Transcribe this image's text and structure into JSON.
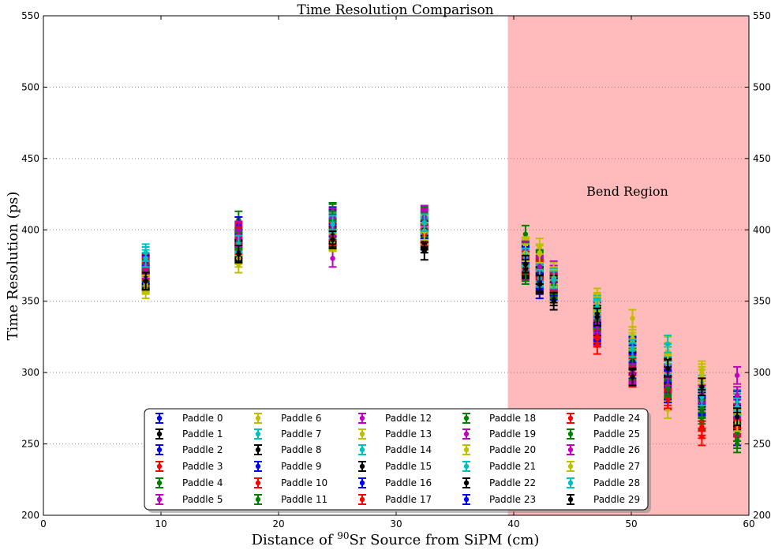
{
  "chart_data": {
    "type": "scatter",
    "title": "Time Resolution Comparison",
    "xlabel_prefix": "Distance of ",
    "xlabel_sup": "90",
    "xlabel_suffix": "Sr Source from SiPM (cm)",
    "ylabel": "Time Resolution (ps)",
    "xlim": [
      0,
      60
    ],
    "ylim": [
      200,
      550
    ],
    "xticks": [
      0,
      10,
      20,
      30,
      40,
      50,
      60
    ],
    "yticks": [
      200,
      250,
      300,
      350,
      400,
      450,
      500,
      550
    ],
    "grid": "horizontal dotted",
    "legend_position": "bottom-center",
    "shaded_region": {
      "label": "Bend Region",
      "x_start": 39.5,
      "x_end": 60,
      "color": "#ffbbbb"
    },
    "x": [
      8.7,
      16.6,
      24.6,
      32.4,
      41.0,
      42.2,
      43.4,
      47.1,
      50.1,
      53.1,
      56.0,
      59.0
    ],
    "series": [
      {
        "name": "Paddle 0",
        "color": "#0000ff",
        "marker": "circle",
        "values": [
          372,
          392,
          401,
          398,
          380,
          365,
          360,
          335,
          305,
          285,
          272,
          258
        ]
      },
      {
        "name": "Paddle 1",
        "color": "#000000",
        "marker": "circle",
        "values": [
          365,
          385,
          398,
          394,
          375,
          368,
          355,
          332,
          310,
          300,
          278,
          265
        ]
      },
      {
        "name": "Paddle 2",
        "color": "#0000ff",
        "marker": "circle",
        "values": [
          370,
          395,
          402,
          400,
          385,
          372,
          362,
          338,
          312,
          296,
          280,
          270
        ]
      },
      {
        "name": "Paddle 3",
        "color": "#ff0000",
        "marker": "circle",
        "values": [
          376,
          388,
          396,
          396,
          378,
          370,
          366,
          325,
          318,
          280,
          265,
          263
        ]
      },
      {
        "name": "Paddle 4",
        "color": "#008000",
        "marker": "circle",
        "values": [
          374,
          390,
          404,
          402,
          368,
          378,
          358,
          340,
          306,
          290,
          270,
          255
        ]
      },
      {
        "name": "Paddle 5",
        "color": "#bf00bf",
        "marker": "circle",
        "values": [
          368,
          398,
          380,
          408,
          382,
          362,
          372,
          330,
          298,
          292,
          285,
          275
        ]
      },
      {
        "name": "Paddle 6",
        "color": "#bfbf00",
        "marker": "circle",
        "values": [
          358,
          376,
          392,
          396,
          387,
          388,
          356,
          350,
          338,
          274,
          302,
          262
        ]
      },
      {
        "name": "Paddle 7",
        "color": "#00bfbf",
        "marker": "circle",
        "values": [
          378,
          393,
          400,
          402,
          386,
          367,
          363,
          345,
          320,
          312,
          278,
          282
        ]
      },
      {
        "name": "Paddle 8",
        "color": "#000000",
        "marker": "circle",
        "values": [
          366,
          386,
          394,
          390,
          374,
          361,
          353,
          336,
          316,
          298,
          288,
          268
        ]
      },
      {
        "name": "Paddle 9",
        "color": "#0000ff",
        "marker": "circle",
        "values": [
          369,
          396,
          408,
          399,
          381,
          358,
          361,
          326,
          302,
          285,
          283,
          255
        ]
      },
      {
        "name": "Paddle 10",
        "color": "#ff0000",
        "marker": "circle",
        "values": [
          371,
          399,
          405,
          395,
          379,
          373,
          367,
          327,
          296,
          294,
          262,
          272
        ]
      },
      {
        "name": "Paddle 11",
        "color": "#008000",
        "marker": "circle",
        "values": [
          373,
          407,
          413,
          401,
          397,
          380,
          359,
          339,
          309,
          288,
          274,
          250
        ]
      },
      {
        "name": "Paddle 12",
        "color": "#bf00bf",
        "marker": "circle",
        "values": [
          367,
          397,
          407,
          411,
          371,
          375,
          369,
          343,
          318,
          302,
          286,
          298
        ]
      },
      {
        "name": "Paddle 13",
        "color": "#bfbf00",
        "marker": "circle",
        "values": [
          363,
          382,
          395,
          397,
          388,
          377,
          371,
          353,
          326,
          306,
          296,
          280
        ]
      },
      {
        "name": "Paddle 14",
        "color": "#00bfbf",
        "marker": "circle",
        "values": [
          382,
          391,
          403,
          404,
          378,
          369,
          366,
          348,
          314,
          314,
          292,
          270
        ]
      },
      {
        "name": "Paddle 15",
        "color": "#000000",
        "marker": "circle",
        "values": [
          364,
          387,
          397,
          392,
          372,
          363,
          364,
          337,
          312,
          304,
          280,
          266
        ]
      },
      {
        "name": "Paddle 16",
        "color": "#0000ff",
        "marker": "circle",
        "values": [
          375,
          403,
          410,
          403,
          383,
          366,
          357,
          329,
          319,
          295,
          276,
          281
        ]
      },
      {
        "name": "Paddle 17",
        "color": "#ff0000",
        "marker": "circle",
        "values": [
          377,
          389,
          399,
          398,
          376,
          371,
          361,
          319,
          306,
          283,
          255,
          267
        ]
      },
      {
        "name": "Paddle 18",
        "color": "#008000",
        "marker": "circle",
        "values": [
          366,
          393,
          412,
          410,
          384,
          379,
          360,
          335,
          301,
          291,
          266,
          258
        ]
      },
      {
        "name": "Paddle 19",
        "color": "#bf00bf",
        "marker": "circle",
        "values": [
          372,
          400,
          409,
          407,
          377,
          376,
          365,
          333,
          299,
          299,
          290,
          262
        ]
      },
      {
        "name": "Paddle 20",
        "color": "#bfbf00",
        "marker": "circle",
        "values": [
          361,
          380,
          391,
          404,
          389,
          384,
          368,
          347,
          322,
          319,
          298,
          276
        ]
      },
      {
        "name": "Paddle 21",
        "color": "#00bfbf",
        "marker": "circle",
        "values": [
          384,
          392,
          406,
          403,
          380,
          370,
          367,
          344,
          315,
          305,
          281,
          279
        ]
      },
      {
        "name": "Paddle 22",
        "color": "#000000",
        "marker": "circle",
        "values": [
          368,
          384,
          396,
          393,
          373,
          368,
          362,
          341,
          308,
          303,
          282,
          271
        ]
      },
      {
        "name": "Paddle 23",
        "color": "#0000ff",
        "marker": "circle",
        "values": [
          376,
          394,
          402,
          400,
          382,
          364,
          360,
          328,
          313,
          287,
          277,
          277
        ]
      },
      {
        "name": "Paddle 24",
        "color": "#ff0000",
        "marker": "circle",
        "values": [
          374,
          396,
          395,
          397,
          375,
          372,
          363,
          324,
          304,
          281,
          260,
          261
        ]
      },
      {
        "name": "Paddle 25",
        "color": "#008000",
        "marker": "circle",
        "values": [
          370,
          392,
          407,
          406,
          370,
          374,
          361,
          337,
          311,
          289,
          275,
          253
        ]
      },
      {
        "name": "Paddle 26",
        "color": "#bf00bf",
        "marker": "circle",
        "values": [
          375,
          394,
          402,
          409,
          386,
          374,
          364,
          334,
          300,
          297,
          285,
          284
        ]
      },
      {
        "name": "Paddle 27",
        "color": "#bfbf00",
        "marker": "circle",
        "values": [
          362,
          383,
          393,
          399,
          384,
          383,
          366,
          349,
          324,
          315,
          300,
          265
        ]
      },
      {
        "name": "Paddle 28",
        "color": "#00bfbf",
        "marker": "circle",
        "values": [
          380,
          390,
          404,
          405,
          381,
          366,
          365,
          346,
          317,
          320,
          283,
          276
        ]
      },
      {
        "name": "Paddle 29",
        "color": "#000000",
        "marker": "circle",
        "values": [
          364,
          383,
          393,
          385,
          376,
          362,
          350,
          339,
          297,
          303,
          290,
          269
        ]
      }
    ]
  }
}
